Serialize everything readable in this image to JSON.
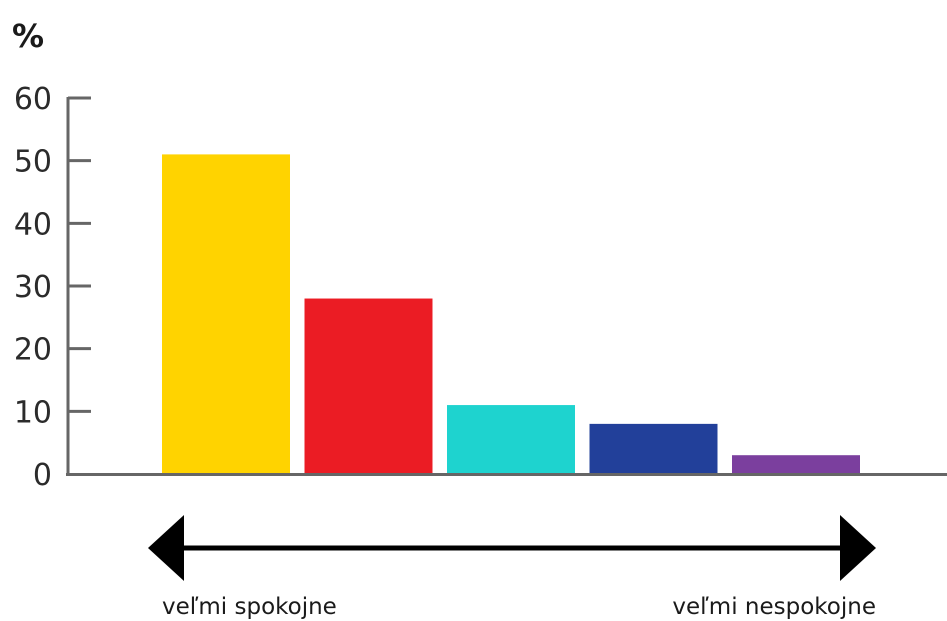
{
  "chart_data": {
    "type": "bar",
    "ylabel": "%",
    "ylim": [
      0,
      60
    ],
    "yticks": [
      0,
      10,
      20,
      30,
      40,
      50,
      60
    ],
    "values": [
      51,
      28,
      11,
      8,
      3
    ],
    "bar_colors": [
      "#FFD300",
      "#EB1C24",
      "#1ED3CF",
      "#22409A",
      "#7B3F9E"
    ],
    "scale_left_label": "veľmi spokojne",
    "scale_right_label": "veľmi nespokojne",
    "grid": false,
    "legend": "none"
  }
}
